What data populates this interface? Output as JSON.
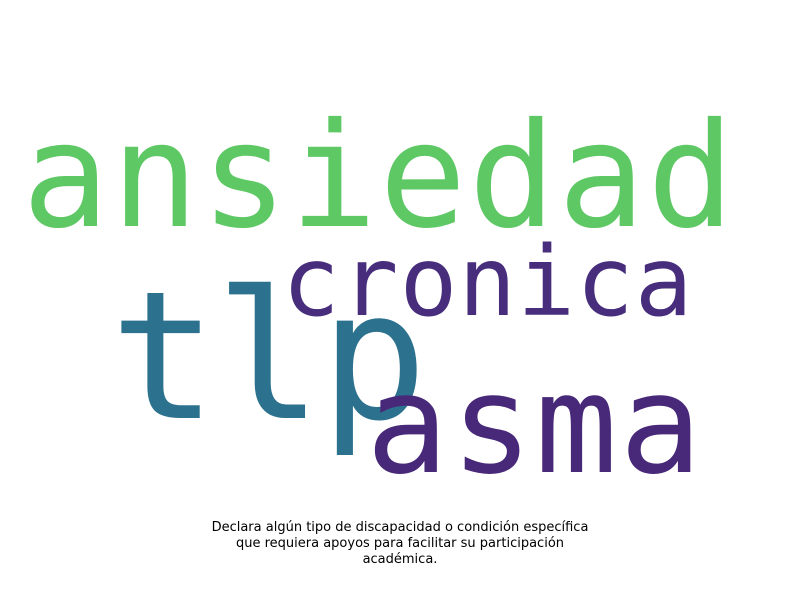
{
  "wordcloud": {
    "words": [
      {
        "text": "ansiedad",
        "color": "#5ec865"
      },
      {
        "text": "cronica",
        "color": "#472d7b"
      },
      {
        "text": "tlp",
        "color": "#2c728e"
      },
      {
        "text": "asma",
        "color": "#482878"
      }
    ]
  },
  "caption": {
    "line1": "Declara algún tipo de discapacidad o condición específica",
    "line2": "que requiera apoyos para facilitar su participación",
    "line3": "académica."
  }
}
